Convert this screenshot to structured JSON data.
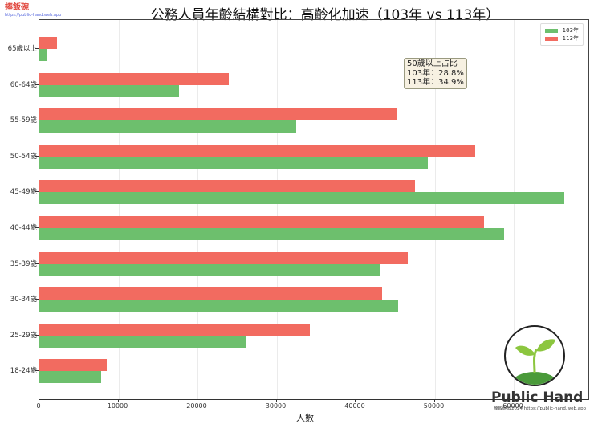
{
  "brand": {
    "name": "捧飯碗",
    "url": "https://public-hand.web.app"
  },
  "logo": {
    "text": "Public Hand",
    "sub": "捧飯碗@2024 https://public-hand.web.app"
  },
  "chart_data": {
    "type": "bar",
    "orientation": "horizontal",
    "title": "公務人員年齡結構對比：高齡化加速（103年 vs 113年）",
    "xlabel": "人數",
    "ylabel": "",
    "xlim": [
      0,
      70000
    ],
    "xticks": [
      0,
      10000,
      20000,
      30000,
      40000,
      50000,
      60000
    ],
    "grid": true,
    "legend_position": "upper right",
    "categories": [
      "65歲以上",
      "60-64歲",
      "55-59歲",
      "50-54歲",
      "45-49歲",
      "40-44歲",
      "35-39歲",
      "30-34歲",
      "25-29歲",
      "18-24歲"
    ],
    "series": [
      {
        "name": "103年",
        "color": "#6dbf6d",
        "values": [
          1000,
          17700,
          32500,
          49100,
          66400,
          58800,
          43100,
          45400,
          26100,
          7800
        ]
      },
      {
        "name": "113年",
        "color": "#f26b60",
        "values": [
          2200,
          24000,
          45200,
          55100,
          47500,
          56200,
          46600,
          43300,
          34200,
          8500
        ]
      }
    ],
    "annotation": {
      "lines": [
        "50歲以上占比",
        "103年：28.8%",
        "113年：34.9%"
      ]
    }
  }
}
